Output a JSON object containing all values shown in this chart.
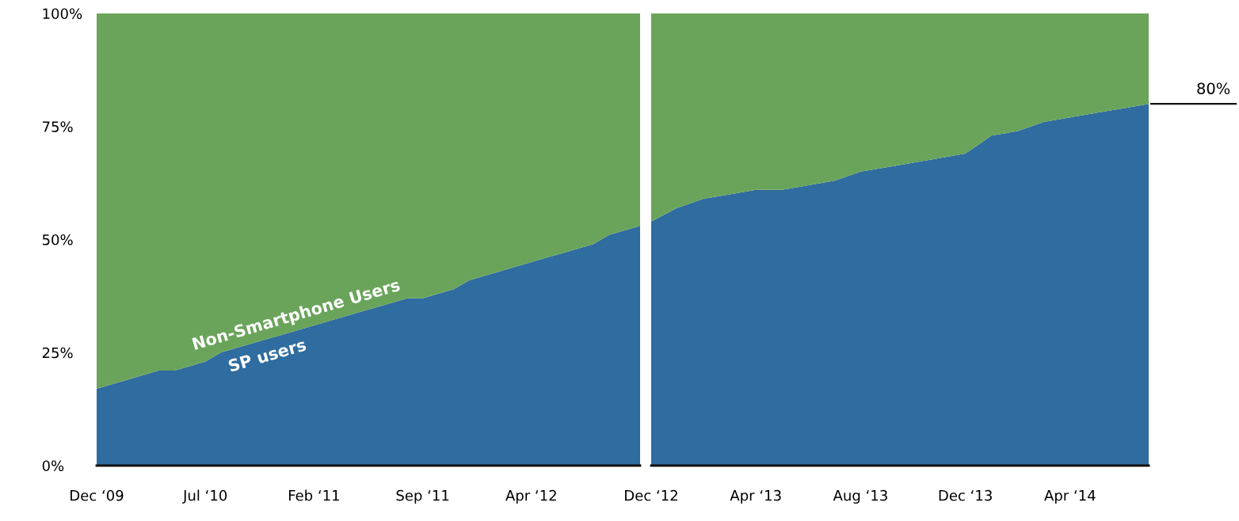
{
  "chart_data": [
    {
      "type": "area",
      "stacked": true,
      "categories": [
        "Dec ‘09",
        null,
        null,
        null,
        null,
        null,
        null,
        "Jul ‘10",
        null,
        null,
        null,
        null,
        null,
        null,
        "Feb ‘11",
        null,
        null,
        null,
        null,
        null,
        null,
        "Sep ‘11",
        null,
        null,
        null,
        null,
        null,
        null,
        "Apr ‘12",
        null,
        null,
        null,
        null,
        null,
        null,
        null
      ],
      "series": [
        {
          "name": "SP users",
          "color": "#2f6c9f",
          "values": [
            17,
            18,
            19,
            20,
            21,
            21,
            22,
            23,
            25,
            26,
            27,
            28,
            29,
            30,
            31,
            32,
            33,
            34,
            35,
            36,
            37,
            37,
            38,
            39,
            41,
            42,
            43,
            44,
            45,
            46,
            47,
            48,
            49,
            51,
            52,
            53
          ]
        },
        {
          "name": "Non-Smartphone Users",
          "color": "#6aa45a",
          "values": [
            83,
            82,
            81,
            80,
            79,
            79,
            78,
            77,
            75,
            74,
            73,
            72,
            71,
            70,
            69,
            68,
            67,
            66,
            65,
            64,
            63,
            63,
            62,
            61,
            59,
            58,
            57,
            56,
            55,
            54,
            53,
            52,
            51,
            49,
            48,
            47
          ]
        }
      ],
      "ylim": [
        0,
        100
      ],
      "yticks": [
        {
          "value": 0,
          "label": "0%"
        },
        {
          "value": 25,
          "label": "25%"
        },
        {
          "value": 50,
          "label": "50%"
        },
        {
          "value": 75,
          "label": "75%"
        },
        {
          "value": 100,
          "label": "100%"
        }
      ]
    },
    {
      "type": "area",
      "stacked": true,
      "categories": [
        "Dec ‘12",
        null,
        null,
        null,
        "Apr ‘13",
        null,
        null,
        null,
        "Aug ‘13",
        null,
        null,
        null,
        "Dec ‘13",
        null,
        null,
        null,
        "Apr ‘14",
        null,
        null,
        null
      ],
      "series": [
        {
          "color": "#2f6c9f",
          "values": [
            54,
            57,
            59,
            60,
            61,
            61,
            62,
            63,
            65,
            66,
            67,
            68,
            69,
            73,
            74,
            76,
            77,
            78,
            79,
            80
          ]
        },
        {
          "color": "#6aa45a",
          "values": [
            46,
            43,
            41,
            40,
            39,
            39,
            38,
            37,
            35,
            34,
            33,
            32,
            31,
            27,
            26,
            24,
            23,
            22,
            21,
            20
          ]
        }
      ],
      "ylim": [
        0,
        100
      ],
      "tick_labels": "x",
      "annotations": [
        "80%"
      ]
    }
  ]
}
